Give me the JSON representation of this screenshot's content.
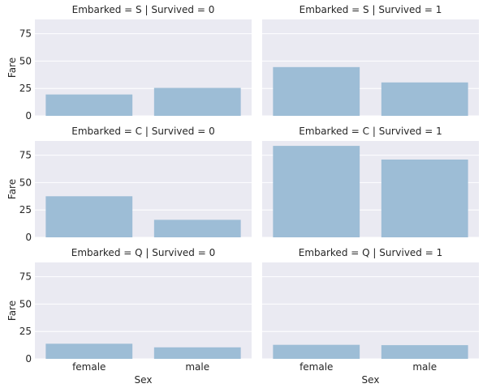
{
  "chart_data": {
    "type": "bar",
    "layout": "facet-grid",
    "xlabel": "Sex",
    "ylabel": "Fare",
    "categories": [
      "female",
      "male"
    ],
    "ylim": [
      0,
      88
    ],
    "yticks": [
      0,
      25,
      50,
      75
    ],
    "panels": [
      {
        "title": "Embarked = S | Survived = 0",
        "values": [
          19.5,
          25.5
        ]
      },
      {
        "title": "Embarked = S | Survived = 1",
        "values": [
          44.5,
          30.5
        ]
      },
      {
        "title": "Embarked = C | Survived = 0",
        "values": [
          37.5,
          16
        ]
      },
      {
        "title": "Embarked = C | Survived = 1",
        "values": [
          83.5,
          71
        ]
      },
      {
        "title": "Embarked = Q | Survived = 0",
        "values": [
          13.8,
          10.5
        ]
      },
      {
        "title": "Embarked = Q | Survived = 1",
        "values": [
          12.8,
          12.5
        ]
      }
    ]
  }
}
